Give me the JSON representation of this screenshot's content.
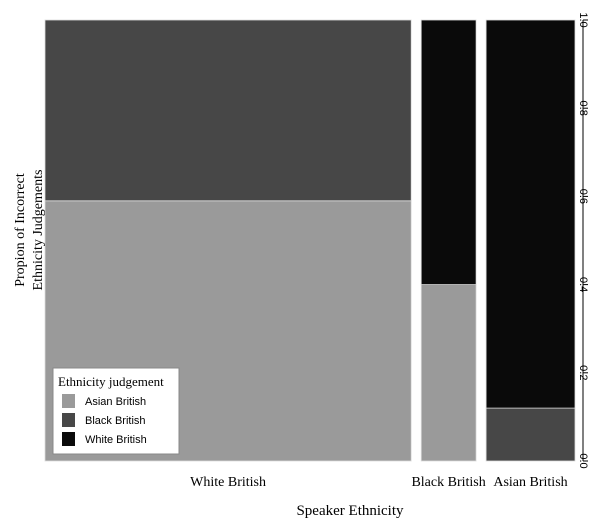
{
  "chart_data": {
    "type": "mosaic",
    "xlabel": "Speaker Ethnicity",
    "ylabel_lines": [
      "Propion of Incorrect",
      "Ethnicity Judgements"
    ],
    "ylim": [
      0,
      1
    ],
    "y_ticks": [
      "0.0",
      "0.2",
      "0.4",
      "0.6",
      "0.8",
      "1.0"
    ],
    "y_tick_values": [
      0,
      0.2,
      0.4,
      0.6,
      0.8,
      1.0
    ],
    "y_axis_side": "right",
    "categories": [
      "White British",
      "Black British",
      "Asian British"
    ],
    "category_widths": [
      0.7,
      0.105,
      0.17
    ],
    "series": [
      {
        "name": "Asian British",
        "color": "#9a9a9a",
        "values": [
          0.59,
          0.4,
          0.0
        ]
      },
      {
        "name": "Black British",
        "color": "#474747",
        "values": [
          0.41,
          0.0,
          0.12
        ]
      },
      {
        "name": "White British",
        "color": "#0a0a0a",
        "values": [
          0.0,
          0.6,
          0.88
        ]
      }
    ],
    "legend": {
      "title": "Ethnicity judgement",
      "placement": "bottom-left",
      "entries": [
        "Asian British",
        "Black British",
        "White British"
      ]
    }
  }
}
